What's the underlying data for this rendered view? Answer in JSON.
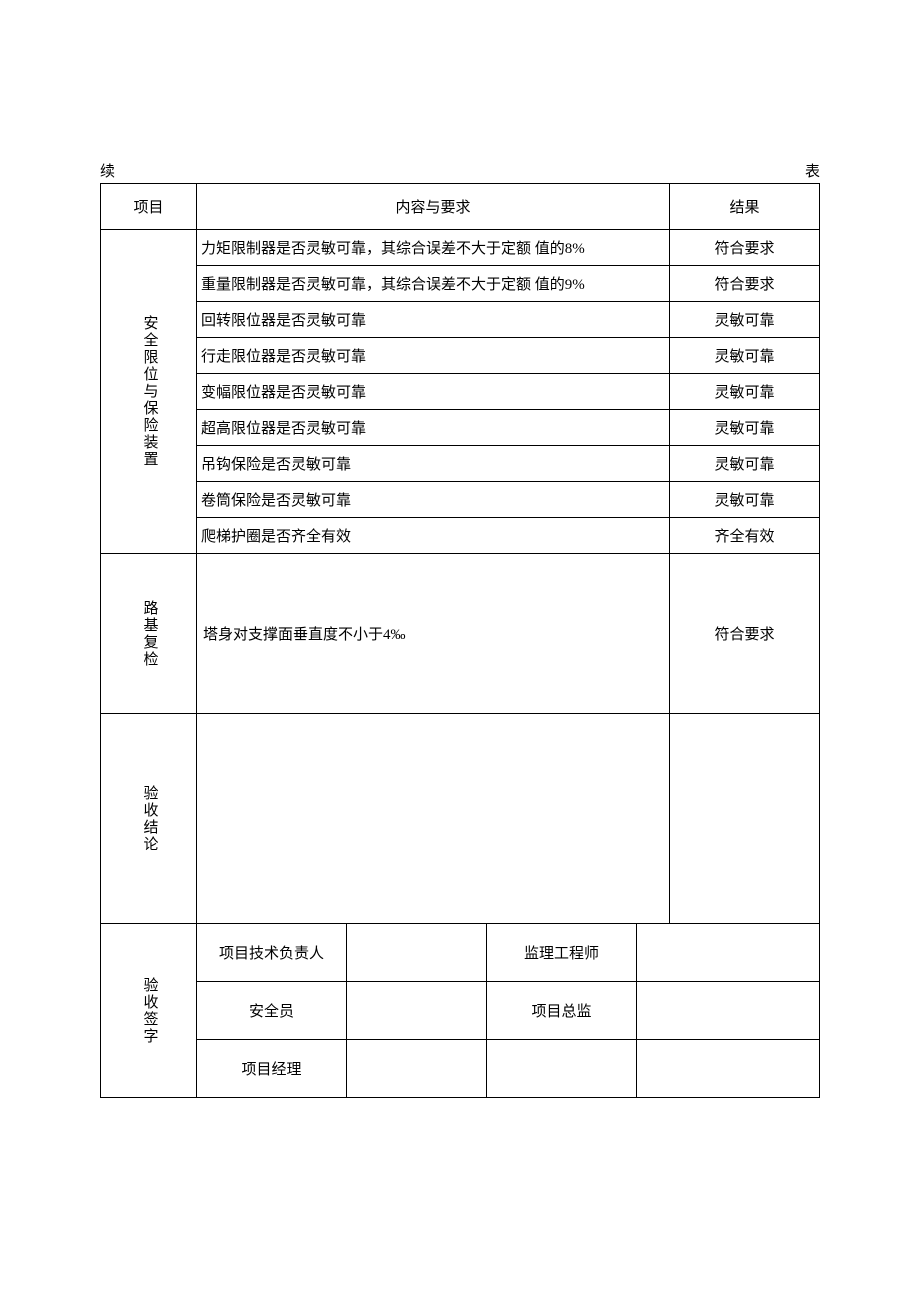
{
  "continuation": {
    "left": "续",
    "right": "表"
  },
  "headers": {
    "category": "项目",
    "content": "内容与要求",
    "result": "结果"
  },
  "sections": {
    "safety": {
      "label": "安全限位与保险装置",
      "rows": [
        {
          "content": "力矩限制器是否灵敏可靠，其综合误差不大于定额 值的8%",
          "result": "符合要求"
        },
        {
          "content": "重量限制器是否灵敏可靠，其综合误差不大于定额 值的9%",
          "result": "符合要求"
        },
        {
          "content": "回转限位器是否灵敏可靠",
          "result": "灵敏可靠"
        },
        {
          "content": "行走限位器是否灵敏可靠",
          "result": "灵敏可靠"
        },
        {
          "content": "变幅限位器是否灵敏可靠",
          "result": "灵敏可靠"
        },
        {
          "content": "超高限位器是否灵敏可靠",
          "result": "灵敏可靠"
        },
        {
          "content": "吊钩保险是否灵敏可靠",
          "result": "灵敏可靠"
        },
        {
          "content": "卷筒保险是否灵敏可靠",
          "result": "灵敏可靠"
        },
        {
          "content": "爬梯护圈是否齐全有效",
          "result": "齐全有效"
        }
      ]
    },
    "recheck": {
      "label": "路基复检",
      "content": "塔身对支撑面垂直度不小于4‰",
      "result": "符合要求"
    },
    "conclusion": {
      "label": "验收结论",
      "content": "",
      "result": ""
    },
    "signatures": {
      "label": "验收签字",
      "rows": [
        {
          "left": "项目技术负责人",
          "right": "监理工程师"
        },
        {
          "left": "安全员",
          "right": "项目总监"
        },
        {
          "left": "项目经理",
          "right": ""
        }
      ]
    }
  }
}
